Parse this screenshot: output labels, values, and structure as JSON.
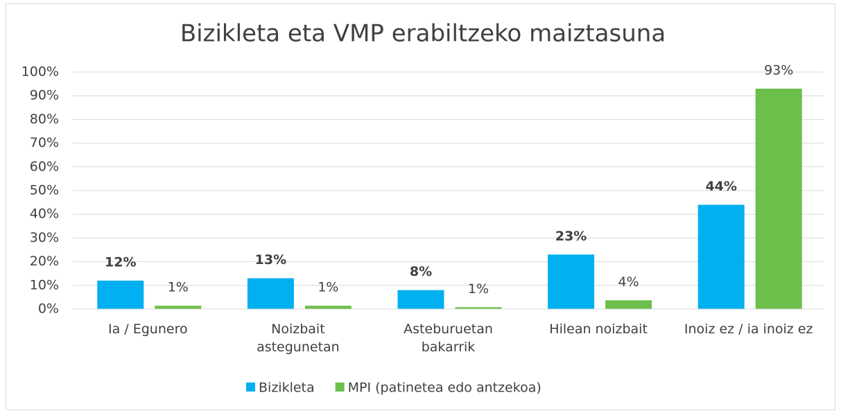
{
  "chart_data": {
    "type": "bar",
    "title": "Bizikleta eta VMP erabiltzeko maiztasuna",
    "categories": [
      "Ia / Egunero",
      "Noizbait astegunetan",
      "Asteburuetan bakarrik",
      "Hilean noizbait",
      "Inoiz ez / ia inoiz ez"
    ],
    "series": [
      {
        "name": "Bizikleta",
        "color": "#00b0f0",
        "values": [
          12,
          13,
          8,
          23,
          44
        ],
        "value_labels": [
          "12%",
          "13%",
          "8%",
          "23%",
          "44%"
        ]
      },
      {
        "name": "MPI (patinetea edo antzekoa)",
        "color": "#6cbf4a",
        "values": [
          1.4,
          1.4,
          0.8,
          3.7,
          93
        ],
        "value_labels": [
          "1%",
          "1%",
          "1%",
          "4%",
          "93%"
        ]
      }
    ],
    "ylim": [
      0,
      100
    ],
    "yticks": [
      {
        "value": 0,
        "label": "0%"
      },
      {
        "value": 10,
        "label": "10%"
      },
      {
        "value": 20,
        "label": "20%"
      },
      {
        "value": 30,
        "label": "30%"
      },
      {
        "value": 40,
        "label": "40%"
      },
      {
        "value": 50,
        "label": "50%"
      },
      {
        "value": 60,
        "label": "60%"
      },
      {
        "value": 70,
        "label": "70%"
      },
      {
        "value": 80,
        "label": "80%"
      },
      {
        "value": 90,
        "label": "90%"
      },
      {
        "value": 100,
        "label": "100%"
      }
    ],
    "grid": true,
    "legend": "bottom"
  }
}
